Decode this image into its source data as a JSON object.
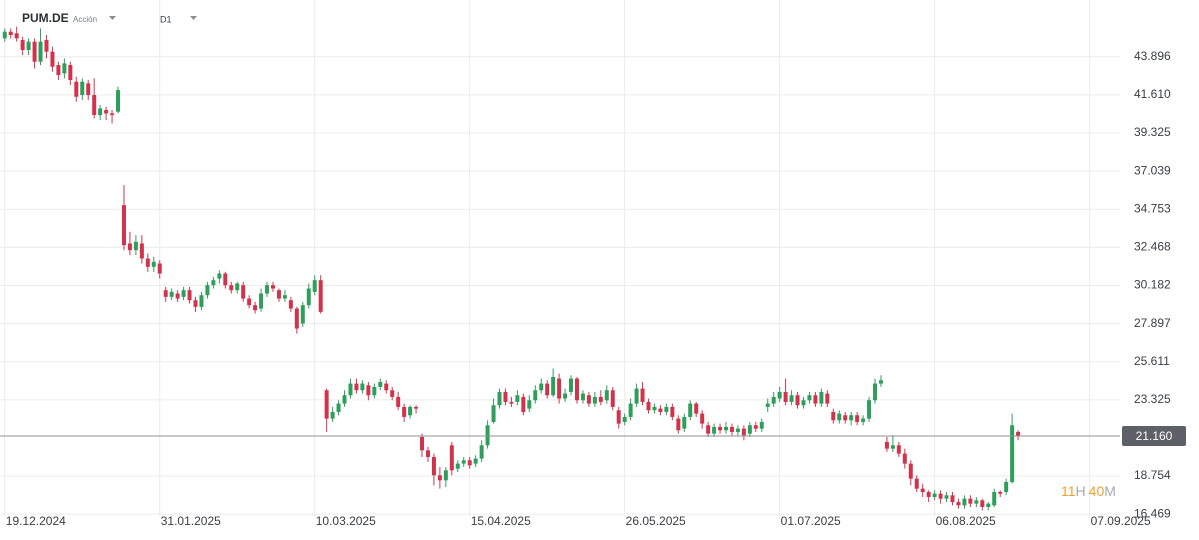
{
  "header": {
    "symbol": "PUM.DE",
    "asset_type": "Acción",
    "timeframe": "D1"
  },
  "countdown": {
    "hours": "11",
    "hours_unit": "H",
    "minutes": "40",
    "minutes_unit": "M"
  },
  "chart_data": {
    "type": "candlestick",
    "up_color": "#2f9e5c",
    "down_color": "#d2334c",
    "grid": true,
    "xlim": [
      -0.8,
      187.1
    ],
    "xticks": [
      {
        "value": 0,
        "label": "19.12.2024"
      },
      {
        "value": 26,
        "label": "31.01.2025"
      },
      {
        "value": 52,
        "label": "10.03.2025"
      },
      {
        "value": 78,
        "label": "15.04.2025"
      },
      {
        "value": 104,
        "label": "26.05.2025"
      },
      {
        "value": 130,
        "label": "01.07.2025"
      },
      {
        "value": 156,
        "label": "06.08.2025"
      },
      {
        "value": 182,
        "label": "07.09.2025"
      }
    ],
    "ylim": [
      16.3,
      47.3
    ],
    "yticks": [
      43.896,
      {
        "value": 41.61,
        "label": "41.610"
      },
      39.325,
      37.039,
      34.753,
      32.468,
      30.182,
      27.897,
      25.611,
      23.325,
      18.754,
      16.469
    ],
    "last_price": {
      "value": 21.16,
      "label": "21.160"
    },
    "open": [
      45.0,
      45.4,
      45.3,
      44.9,
      44.3,
      44.8,
      43.6,
      44.9,
      44.2,
      43.4,
      42.9,
      43.4,
      42.4,
      41.6,
      42.3,
      41.6,
      40.4,
      40.7,
      40.5,
      40.6,
      35.0,
      32.7,
      32.3,
      32.7,
      31.8,
      31.3,
      31.5,
      29.9,
      29.5,
      29.7,
      29.5,
      29.9,
      29.3,
      28.9,
      29.6,
      30.2,
      30.6,
      30.9,
      30.2,
      29.9,
      30.2,
      29.4,
      29.0,
      28.8,
      29.7,
      30.2,
      29.9,
      29.4,
      29.3,
      28.8,
      27.9,
      29.0,
      29.8,
      30.5,
      23.9,
      22.2,
      22.6,
      23.1,
      23.6,
      24.3,
      23.9,
      24.2,
      23.6,
      24.1,
      24.3,
      23.9,
      23.5,
      22.9,
      22.4,
      22.9,
      21.1,
      20.3,
      19.9,
      18.8,
      18.5,
      20.6,
      19.2,
      19.5,
      19.7,
      19.5,
      19.8,
      20.6,
      22.0,
      23.0,
      23.8,
      23.2,
      23.2,
      23.5,
      22.8,
      23.3,
      23.9,
      24.3,
      23.6,
      24.6,
      23.4,
      23.8,
      24.6,
      23.3,
      23.6,
      23.1,
      23.5,
      23.3,
      23.9,
      22.7,
      22.0,
      22.3,
      23.1,
      24.0,
      23.2,
      22.7,
      22.8,
      22.6,
      22.9,
      22.2,
      21.6,
      22.3,
      23.1,
      22.5,
      21.8,
      21.3,
      21.7,
      21.5,
      21.7,
      21.4,
      21.6,
      21.3,
      21.8,
      21.6,
      22.9,
      23.1,
      23.4,
      23.8,
      23.2,
      23.6,
      23.0,
      23.3,
      23.6,
      23.1,
      23.7,
      22.6,
      22.1,
      22.4,
      22.1,
      22.4,
      22.0,
      22.2,
      23.3,
      24.3,
      20.8,
      20.4,
      20.6,
      20.1,
      19.5,
      18.6,
      18.0,
      17.8,
      17.5,
      17.7,
      17.4,
      17.6,
      17.2,
      17.0,
      17.4,
      17.1,
      17.3,
      16.9,
      17.0,
      17.8,
      17.8,
      18.4,
      21.4
    ],
    "high": [
      45.6,
      45.6,
      45.7,
      45.1,
      45.0,
      45.0,
      45.6,
      45.2,
      44.5,
      43.6,
      43.8,
      43.6,
      42.7,
      42.6,
      42.5,
      42.6,
      41.0,
      40.9,
      40.7,
      42.1,
      36.2,
      33.4,
      33.2,
      33.2,
      32.1,
      31.9,
      31.7,
      30.1,
      30.0,
      29.9,
      30.1,
      30.1,
      29.5,
      29.8,
      30.4,
      30.7,
      31.1,
      31.0,
      30.4,
      30.4,
      30.4,
      29.6,
      29.2,
      30.0,
      30.4,
      30.4,
      30.0,
      29.9,
      29.5,
      28.9,
      29.2,
      30.3,
      30.8,
      30.8,
      24.0,
      22.9,
      23.3,
      23.9,
      24.6,
      24.6,
      24.5,
      24.4,
      24.3,
      24.6,
      24.5,
      24.1,
      23.8,
      23.1,
      23.0,
      23.0,
      21.3,
      20.5,
      20.1,
      19.3,
      19.3,
      20.8,
      19.7,
      19.9,
      19.9,
      20.0,
      20.9,
      22.1,
      23.4,
      24.0,
      24.0,
      23.5,
      23.9,
      23.7,
      23.6,
      24.2,
      24.6,
      24.5,
      25.2,
      24.9,
      24.0,
      24.8,
      24.7,
      23.9,
      23.8,
      23.8,
      23.9,
      24.2,
      24.1,
      22.9,
      22.5,
      23.4,
      24.3,
      24.4,
      23.4,
      23.1,
      23.0,
      23.1,
      23.1,
      22.4,
      22.5,
      23.3,
      23.2,
      22.7,
      22.0,
      21.9,
      21.9,
      22.0,
      21.9,
      21.8,
      21.8,
      22.0,
      22.0,
      22.2,
      23.4,
      23.8,
      24.1,
      24.6,
      23.9,
      23.8,
      23.5,
      23.8,
      23.8,
      24.0,
      23.9,
      22.8,
      22.7,
      22.6,
      22.6,
      22.6,
      22.4,
      23.5,
      24.6,
      24.8,
      21.1,
      21.2,
      20.8,
      20.4,
      19.7,
      18.8,
      18.3,
      17.9,
      17.9,
      17.9,
      17.8,
      17.8,
      17.4,
      17.6,
      17.6,
      17.5,
      17.4,
      17.2,
      18.0,
      17.9,
      18.6,
      22.5,
      21.5
    ],
    "low": [
      44.8,
      45.0,
      44.8,
      44.0,
      44.0,
      43.2,
      43.4,
      43.8,
      43.0,
      42.5,
      42.6,
      42.2,
      41.2,
      41.3,
      41.3,
      40.2,
      40.1,
      40.1,
      39.9,
      40.5,
      32.3,
      32.0,
      32.0,
      31.5,
      31.0,
      31.0,
      30.6,
      29.2,
      29.3,
      29.2,
      29.3,
      29.1,
      28.6,
      28.7,
      29.4,
      30.0,
      30.3,
      30.0,
      29.7,
      29.7,
      29.2,
      28.8,
      28.5,
      28.6,
      29.5,
      29.8,
      29.2,
      29.2,
      28.6,
      27.3,
      27.7,
      28.8,
      29.6,
      28.5,
      21.4,
      22.0,
      22.4,
      22.9,
      23.4,
      23.7,
      23.7,
      23.3,
      23.4,
      23.9,
      23.7,
      23.3,
      22.7,
      22.0,
      22.2,
      22.5,
      19.9,
      19.6,
      18.2,
      18.0,
      18.1,
      18.8,
      19.0,
      19.3,
      19.2,
      19.3,
      19.6,
      20.4,
      21.9,
      22.8,
      23.0,
      22.9,
      23.0,
      22.4,
      22.6,
      23.1,
      23.7,
      23.4,
      23.5,
      23.1,
      23.2,
      23.6,
      23.1,
      23.1,
      22.9,
      22.9,
      23.0,
      23.1,
      22.7,
      21.6,
      21.8,
      22.1,
      22.9,
      23.0,
      22.5,
      22.5,
      22.4,
      22.4,
      22.1,
      21.3,
      21.4,
      22.1,
      22.3,
      21.6,
      21.1,
      21.1,
      21.3,
      21.3,
      21.2,
      21.2,
      20.9,
      21.1,
      21.4,
      21.4,
      22.6,
      22.9,
      23.2,
      23.0,
      23.0,
      22.8,
      22.8,
      23.1,
      22.9,
      22.9,
      22.9,
      21.9,
      21.9,
      21.9,
      21.8,
      21.8,
      21.8,
      22.0,
      23.1,
      24.1,
      20.2,
      20.2,
      19.9,
      19.2,
      18.2,
      17.8,
      17.5,
      17.2,
      17.3,
      17.1,
      17.2,
      17.0,
      16.8,
      16.8,
      16.9,
      16.9,
      16.7,
      16.7,
      16.9,
      17.5,
      17.6,
      18.3,
      20.9
    ],
    "close": [
      45.4,
      45.2,
      45.0,
      44.3,
      44.8,
      43.6,
      44.8,
      44.2,
      43.3,
      42.8,
      43.5,
      42.5,
      41.5,
      42.4,
      41.6,
      40.4,
      40.8,
      40.5,
      40.4,
      41.9,
      32.6,
      32.3,
      32.8,
      31.8,
      31.3,
      31.6,
      30.9,
      29.5,
      29.8,
      29.4,
      29.9,
      29.3,
      28.9,
      29.6,
      30.2,
      30.5,
      30.9,
      30.2,
      29.9,
      30.3,
      29.4,
      29.0,
      28.7,
      29.7,
      30.2,
      30.0,
      29.4,
      29.6,
      28.8,
      27.6,
      29.0,
      30.0,
      30.5,
      28.6,
      22.2,
      22.6,
      23.1,
      23.6,
      24.3,
      23.9,
      24.3,
      23.6,
      24.1,
      24.4,
      23.9,
      23.5,
      22.9,
      22.3,
      22.9,
      22.8,
      20.3,
      19.9,
      18.8,
      18.5,
      19.1,
      19.1,
      19.5,
      19.7,
      19.4,
      19.8,
      20.6,
      21.8,
      23.0,
      23.8,
      23.2,
      23.1,
      23.6,
      22.6,
      23.3,
      23.9,
      24.3,
      23.6,
      24.7,
      23.4,
      23.7,
      24.6,
      23.3,
      23.7,
      23.1,
      23.5,
      23.2,
      23.9,
      22.9,
      21.9,
      22.3,
      23.1,
      24.0,
      23.2,
      22.7,
      22.9,
      22.6,
      22.9,
      22.3,
      21.5,
      22.3,
      23.1,
      22.5,
      21.9,
      21.3,
      21.7,
      21.5,
      21.7,
      21.4,
      21.6,
      21.2,
      21.8,
      21.6,
      22.0,
      23.1,
      23.5,
      23.8,
      23.2,
      23.6,
      23.0,
      23.3,
      23.6,
      23.1,
      23.8,
      23.1,
      22.1,
      22.5,
      22.1,
      22.4,
      22.0,
      22.2,
      23.3,
      24.3,
      24.5,
      20.4,
      20.6,
      20.1,
      19.5,
      18.6,
      18.0,
      17.8,
      17.5,
      17.7,
      17.4,
      17.6,
      17.2,
      17.0,
      17.4,
      17.1,
      17.3,
      16.9,
      17.1,
      17.8,
      17.7,
      18.4,
      21.8,
      21.16
    ]
  }
}
